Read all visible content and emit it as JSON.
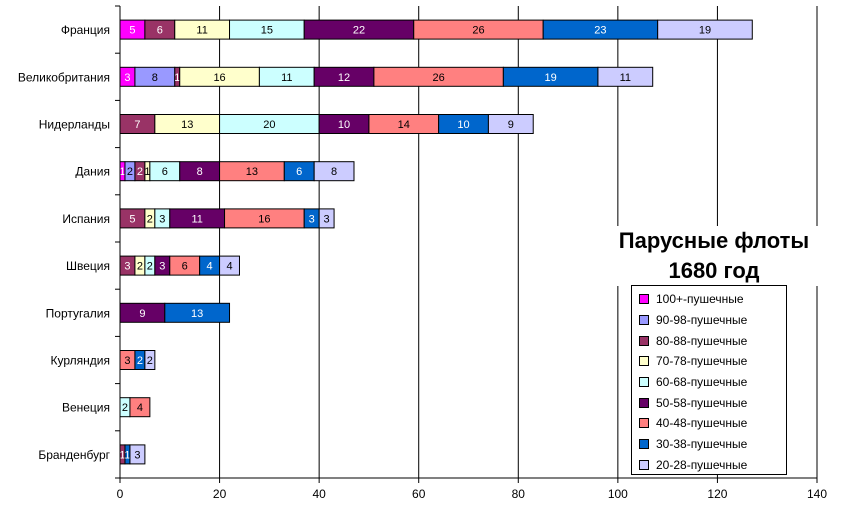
{
  "chart_data": {
    "type": "bar",
    "orientation": "horizontal",
    "stacked": true,
    "title": "Парусные флоты\n1680 год",
    "categories": [
      "Франция",
      "Великобритания",
      "Нидерланды",
      "Дания",
      "Испания",
      "Швеция",
      "Португалия",
      "Курляндия",
      "Венеция",
      "Бранденбург"
    ],
    "series": [
      {
        "name": "100+-пушечные",
        "color": "#ff00ff",
        "values": [
          5,
          3,
          0,
          1,
          0,
          0,
          0,
          0,
          0,
          0
        ]
      },
      {
        "name": "90-98-пушечные",
        "color": "#9999ff",
        "values": [
          0,
          8,
          0,
          2,
          0,
          0,
          0,
          0,
          0,
          0
        ]
      },
      {
        "name": "80-88-пушечные",
        "color": "#993366",
        "values": [
          6,
          1,
          7,
          2,
          5,
          3,
          0,
          0,
          0,
          1
        ]
      },
      {
        "name": "70-78-пушечные",
        "color": "#ffffcc",
        "values": [
          11,
          16,
          13,
          1,
          2,
          2,
          0,
          0,
          0,
          0
        ]
      },
      {
        "name": "60-68-пушечные",
        "color": "#ccffff",
        "values": [
          15,
          11,
          20,
          6,
          3,
          2,
          0,
          0,
          2,
          0
        ]
      },
      {
        "name": "50-58-пушечные",
        "color": "#660066",
        "values": [
          22,
          12,
          10,
          8,
          11,
          3,
          9,
          0,
          0,
          0
        ]
      },
      {
        "name": "40-48-пушечные",
        "color": "#ff8080",
        "values": [
          26,
          26,
          14,
          13,
          16,
          6,
          0,
          3,
          4,
          0
        ]
      },
      {
        "name": "30-38-пушечные",
        "color": "#0066cc",
        "values": [
          23,
          19,
          10,
          6,
          3,
          4,
          13,
          2,
          0,
          1
        ]
      },
      {
        "name": "20-28-пушечные",
        "color": "#ccccff",
        "values": [
          19,
          11,
          9,
          8,
          3,
          4,
          0,
          2,
          0,
          3
        ]
      }
    ],
    "xlim": [
      0,
      140
    ],
    "xticks": [
      0,
      20,
      40,
      60,
      80,
      100,
      120,
      140
    ],
    "grid": "vertical",
    "legend": "bottom-right"
  }
}
